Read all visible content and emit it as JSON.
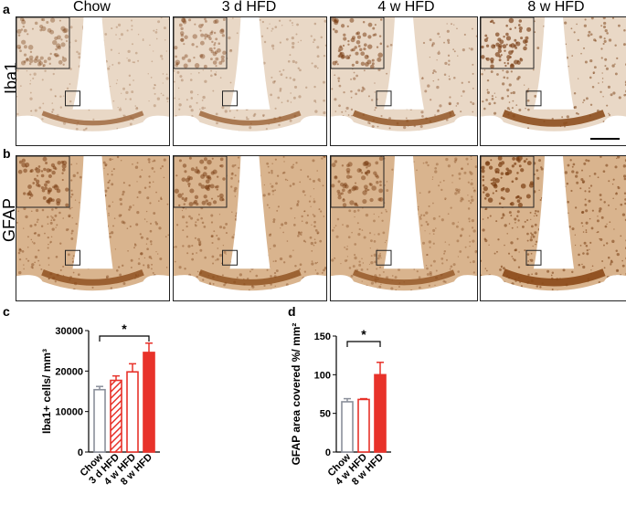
{
  "panels": {
    "a": "a",
    "b": "b",
    "c": "c",
    "d": "d"
  },
  "columns": [
    "Chow",
    "3 d HFD",
    "4 w HFD",
    "8 w HFD"
  ],
  "rows": [
    "Iba1",
    "GFAP"
  ],
  "colors": {
    "chow": "#8a8f9a",
    "hfd": "#e8322a",
    "tissue_iba1": "#e9d8c6",
    "tissue_gfap": "#d9b48e",
    "stain": "#7a3e14"
  },
  "chart_data": [
    {
      "type": "bar",
      "ylabel": "Iba1+ cells/ mm³",
      "categories": [
        "Chow",
        "3 d HFD",
        "4 w HFD",
        "8 w HFD"
      ],
      "values": [
        15400,
        17700,
        19800,
        24600
      ],
      "errors": [
        800,
        1100,
        2000,
        2300
      ],
      "styles": [
        "outline-grey",
        "hatched-red",
        "outline-red",
        "filled-red"
      ],
      "ylim": [
        0,
        30000
      ],
      "yticks": [
        0,
        10000,
        20000,
        30000
      ],
      "ytick_labels": [
        "0",
        "10000",
        "20000",
        "30000"
      ],
      "significance": {
        "from": 0,
        "to": 3,
        "label": "*"
      }
    },
    {
      "type": "bar",
      "ylabel": "GFAP area covered %/ mm²",
      "categories": [
        "Chow",
        "4 w HFD",
        "8 w HFD"
      ],
      "values": [
        65,
        68,
        100
      ],
      "errors": [
        4,
        1,
        16
      ],
      "styles": [
        "outline-grey",
        "outline-red",
        "filled-red"
      ],
      "ylim": [
        0,
        150
      ],
      "yticks": [
        0,
        50,
        100,
        150
      ],
      "ytick_labels": [
        "0",
        "50",
        "100",
        "150"
      ],
      "significance": {
        "from": 0,
        "to": 2,
        "label": "*"
      }
    }
  ]
}
